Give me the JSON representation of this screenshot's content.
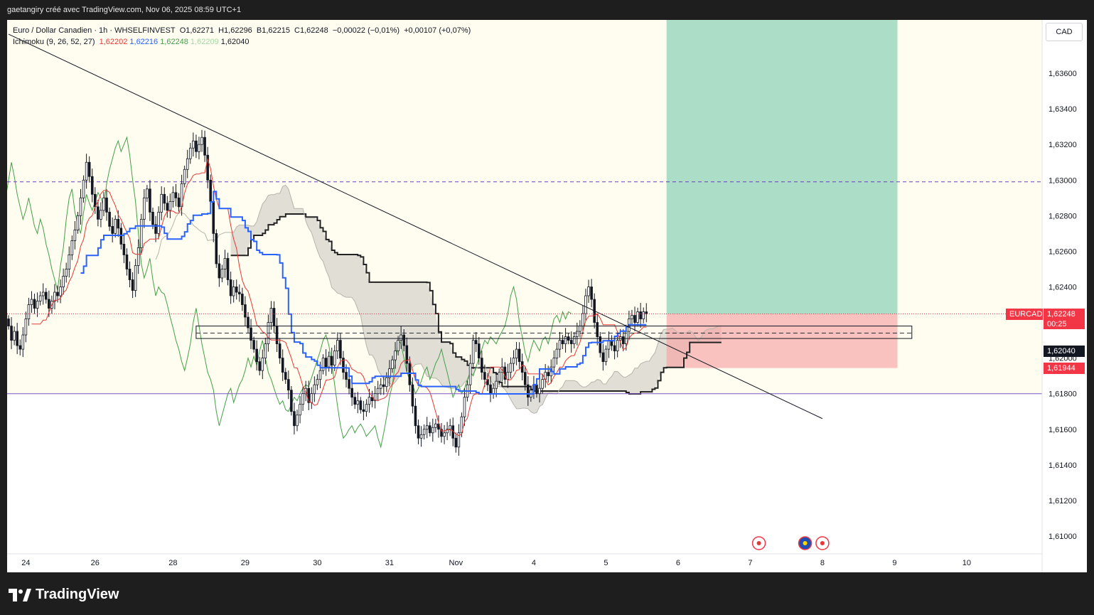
{
  "header": {
    "attribution": "gaetangiry créé avec TradingView.com, Nov 06, 2025 08:59 UTC+1"
  },
  "legend": {
    "symbol_line": "Euro / Dollar Canadien · 1h · WHSELFINVEST",
    "o": "O1,62271",
    "h": "H1,62296",
    "b": "B1,62215",
    "c": "C1,62248",
    "change": "−0,00022 (−0,01%)",
    "change2": "+0,00107 (+0,07%)",
    "ichimoku_label": "Ichimoku (9, 26, 52, 27)",
    "ichimoku_values": [
      {
        "text": "1,62202",
        "color": "#e53935"
      },
      {
        "text": "1,62216",
        "color": "#2962ff"
      },
      {
        "text": "1,62248",
        "color": "#43a047"
      },
      {
        "text": "1,62209",
        "color": "#a5d6a7"
      },
      {
        "text": "1,62040",
        "color": "#131722"
      }
    ]
  },
  "currency_button": "CAD",
  "footer": {
    "brand": "TradingView"
  },
  "colors": {
    "up": "#131722",
    "down": "#131722",
    "cream": "#fffdf0",
    "tenkan": "#e53935",
    "kijun": "#2962ff",
    "chikou": "#43a047",
    "cloud": "#d6d3cc",
    "senkou_b": "#222222",
    "target": "#7fcdb0",
    "stop": "#f8a3a3",
    "last_price_tag": "#f23645",
    "kijun_tag": "#131722"
  },
  "chart_data": {
    "type": "candlestick",
    "symbol": "EURCAD",
    "interval": "1h",
    "y_range": [
      1.609,
      1.639
    ],
    "y_ticks": [
      1.61,
      1.612,
      1.614,
      1.616,
      1.618,
      1.62,
      1.622,
      1.624,
      1.626,
      1.628,
      1.63,
      1.632,
      1.634,
      1.636
    ],
    "y_tick_labels": [
      "1,61000",
      "1,61200",
      "1,61400",
      "1,61600",
      "1,61800",
      "1,62000",
      "1,62200",
      "1,62400",
      "1,62600",
      "1,62800",
      "1,63000",
      "1,63200",
      "1,63400",
      "1,63600"
    ],
    "x_tick_labels": [
      {
        "label": "24",
        "i": 6
      },
      {
        "label": "26",
        "i": 30
      },
      {
        "label": "28",
        "i": 57
      },
      {
        "label": "29",
        "i": 82
      },
      {
        "label": "30",
        "i": 107
      },
      {
        "label": "31",
        "i": 132
      },
      {
        "label": "Nov",
        "i": 155
      },
      {
        "label": "4",
        "i": 182
      },
      {
        "label": "5",
        "i": 207
      },
      {
        "label": "6",
        "i": 232
      },
      {
        "label": "7",
        "i": 257
      },
      {
        "label": "8",
        "i": 282
      },
      {
        "label": "9",
        "i": 307
      },
      {
        "label": "10",
        "i": 332
      }
    ],
    "closes": [
      1.6218,
      1.621,
      1.6215,
      1.6207,
      1.6205,
      1.6213,
      1.6222,
      1.623,
      1.6233,
      1.6228,
      1.6232,
      1.6235,
      1.6237,
      1.6233,
      1.6228,
      1.6232,
      1.6237,
      1.6235,
      1.624,
      1.6246,
      1.625,
      1.6258,
      1.6266,
      1.6272,
      1.628,
      1.629,
      1.63,
      1.631,
      1.6302,
      1.6292,
      1.6285,
      1.6278,
      1.6283,
      1.629,
      1.6282,
      1.6274,
      1.627,
      1.6278,
      1.6273,
      1.6264,
      1.6258,
      1.625,
      1.6244,
      1.6238,
      1.6252,
      1.6262,
      1.6278,
      1.629,
      1.6295,
      1.6282,
      1.6275,
      1.627,
      1.6282,
      1.6292,
      1.6287,
      1.6283,
      1.6288,
      1.6293,
      1.629,
      1.6285,
      1.6298,
      1.6306,
      1.6312,
      1.6318,
      1.6322,
      1.6316,
      1.632,
      1.6324,
      1.6314,
      1.63,
      1.6288,
      1.627,
      1.6253,
      1.6245,
      1.625,
      1.6256,
      1.6244,
      1.6235,
      1.624,
      1.6237,
      1.6236,
      1.623,
      1.6223,
      1.6217,
      1.621,
      1.6205,
      1.6198,
      1.6193,
      1.62,
      1.6208,
      1.622,
      1.6228,
      1.6218,
      1.6208,
      1.62,
      1.6192,
      1.6188,
      1.6182,
      1.617,
      1.6162,
      1.6168,
      1.6174,
      1.618,
      1.6183,
      1.6175,
      1.618,
      1.6185,
      1.6188,
      1.6193,
      1.62,
      1.6195,
      1.6201,
      1.6196,
      1.6204,
      1.621,
      1.62,
      1.6192,
      1.6188,
      1.6183,
      1.6178,
      1.6174,
      1.6176,
      1.6171,
      1.617,
      1.6174,
      1.6178,
      1.6176,
      1.618,
      1.6183,
      1.6185,
      1.6184,
      1.6189,
      1.6194,
      1.6199,
      1.6204,
      1.621,
      1.6213,
      1.6207,
      1.6197,
      1.6185,
      1.6173,
      1.6162,
      1.6155,
      1.6157,
      1.616,
      1.6162,
      1.6158,
      1.6161,
      1.6163,
      1.616,
      1.6156,
      1.6158,
      1.616,
      1.6162,
      1.6155,
      1.615,
      1.6158,
      1.6167,
      1.6178,
      1.6185,
      1.6197,
      1.621,
      1.6208,
      1.62,
      1.6192,
      1.6188,
      1.6185,
      1.618,
      1.6183,
      1.6187,
      1.6192,
      1.6195,
      1.6188,
      1.6192,
      1.6197,
      1.62,
      1.6205,
      1.6198,
      1.6192,
      1.6185,
      1.6178,
      1.6182,
      1.6185,
      1.618,
      1.6183,
      1.6188,
      1.6192,
      1.619,
      1.6195,
      1.62,
      1.6205,
      1.621,
      1.6208,
      1.6212,
      1.621,
      1.6208,
      1.6212,
      1.6215,
      1.6218,
      1.6225,
      1.6235,
      1.624,
      1.6233,
      1.622,
      1.6212,
      1.6203,
      1.6198,
      1.6205,
      1.621,
      1.6207,
      1.6204,
      1.621,
      1.6212,
      1.6208,
      1.6215,
      1.6222,
      1.6224,
      1.622,
      1.6226,
      1.6222,
      1.6226,
      1.6225
    ],
    "ichimoku": {
      "tenkan": 9,
      "kijun": 26,
      "senkou_b": 52,
      "displacement": 27
    },
    "levels": {
      "dashed_purple": 1.6299,
      "support_line": 1.618,
      "last_price": 1.62248,
      "last_price_label": "1,62248",
      "countdown": "00:25",
      "symbol_tag": "EURCAD",
      "kijun_price": 1.6204,
      "kijun_label": "1,62040",
      "stop_price": 1.61944,
      "stop_label": "1,61944"
    },
    "zone_box": {
      "from_i": 65,
      "to_i": 313,
      "top": 1.6218,
      "bottom": 1.6211,
      "mid": 1.6214
    },
    "trendline": {
      "x1_i": 0,
      "y1": 1.6382,
      "x2_i": 282,
      "y2": 1.6166
    },
    "position": {
      "from_i": 228,
      "to_i": 308,
      "entry": 1.62248,
      "target": 1.639,
      "stop": 1.61944
    },
    "events": [
      {
        "i": 260,
        "flag": "ca"
      },
      {
        "i": 276,
        "flag": "eu"
      },
      {
        "i": 282,
        "flag": "ca"
      }
    ]
  }
}
